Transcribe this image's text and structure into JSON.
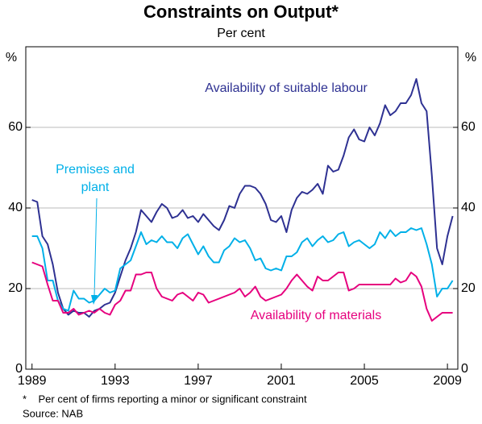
{
  "chart_data": {
    "type": "line",
    "title": "Constraints on Output*",
    "subtitle": "Per cent",
    "y_unit": "%",
    "y2_unit": "%",
    "x": [
      1989,
      1989.25,
      1989.5,
      1989.75,
      1990,
      1990.25,
      1990.5,
      1990.75,
      1991,
      1991.25,
      1991.5,
      1991.75,
      1992,
      1992.25,
      1992.5,
      1992.75,
      1993,
      1993.25,
      1993.5,
      1993.75,
      1994,
      1994.25,
      1994.5,
      1994.75,
      1995,
      1995.25,
      1995.5,
      1995.75,
      1996,
      1996.25,
      1996.5,
      1996.75,
      1997,
      1997.25,
      1997.5,
      1997.75,
      1998,
      1998.25,
      1998.5,
      1998.75,
      1999,
      1999.25,
      1999.5,
      1999.75,
      2000,
      2000.25,
      2000.5,
      2000.75,
      2001,
      2001.25,
      2001.5,
      2001.75,
      2002,
      2002.25,
      2002.5,
      2002.75,
      2003,
      2003.25,
      2003.5,
      2003.75,
      2004,
      2004.25,
      2004.5,
      2004.75,
      2005,
      2005.25,
      2005.5,
      2005.75,
      2006,
      2006.25,
      2006.5,
      2006.75,
      2007,
      2007.25,
      2007.5,
      2007.75,
      2008,
      2008.25,
      2008.5,
      2008.75,
      2009,
      2009.25
    ],
    "series": [
      {
        "name": "Availability of suitable labour",
        "color": "#2e3192",
        "values": [
          42,
          41.5,
          33,
          31,
          26,
          19,
          15,
          13.5,
          14.5,
          14,
          14,
          13,
          14.5,
          15,
          16,
          16.5,
          19,
          23,
          27,
          30,
          34,
          39.5,
          38,
          36.5,
          39,
          41,
          40,
          37.5,
          38,
          39.5,
          37.5,
          38,
          36.5,
          38.5,
          37,
          35.5,
          34.5,
          37,
          40.5,
          40,
          43.5,
          45.5,
          45.5,
          45,
          43.5,
          41,
          37,
          36.5,
          38,
          34,
          39.5,
          42.5,
          44,
          43.5,
          44.5,
          46,
          43.5,
          50.5,
          49,
          49.5,
          53,
          57.5,
          59.5,
          57,
          56.5,
          60,
          58,
          61,
          65.5,
          63,
          64,
          66,
          66,
          68,
          72,
          66,
          64,
          48,
          30,
          26,
          33,
          38
        ]
      },
      {
        "name": "Premises and plant",
        "color": "#00b0e8",
        "values": [
          33,
          33,
          30,
          22,
          22,
          17,
          15,
          14.5,
          19.5,
          17.5,
          17.5,
          16.5,
          17,
          18.5,
          20,
          19,
          19.5,
          25,
          26,
          27,
          30.5,
          34,
          31,
          32,
          31.5,
          33,
          31.5,
          31.5,
          30,
          32.5,
          33.5,
          31,
          28.5,
          30.5,
          28,
          26.5,
          26.5,
          29.5,
          30.5,
          32.5,
          31.5,
          32,
          30,
          27,
          27.5,
          25,
          24.5,
          25,
          24.5,
          28,
          28,
          29,
          31.5,
          32.5,
          30.5,
          32,
          33,
          31.5,
          32,
          33.5,
          34,
          30.5,
          31.5,
          32,
          31,
          30,
          31,
          34,
          32.5,
          34.5,
          33,
          34,
          34,
          35,
          34.5,
          35,
          31,
          26,
          18,
          20,
          20,
          22
        ]
      },
      {
        "name": "Availability of materials",
        "color": "#e6007e",
        "values": [
          26.5,
          26,
          25.5,
          21,
          17,
          17,
          14,
          14,
          15,
          13.5,
          14,
          14.5,
          14,
          15,
          14,
          13.5,
          16,
          17,
          19.5,
          19.5,
          23.5,
          23.5,
          24,
          24,
          20,
          18,
          17.5,
          17,
          18.5,
          19,
          18,
          17,
          19,
          18.5,
          16.5,
          17,
          17.5,
          18,
          18.5,
          19,
          20,
          18,
          19,
          20.5,
          18,
          17,
          17.5,
          18,
          18.5,
          20,
          22,
          23.5,
          22,
          20.5,
          19.5,
          23,
          22,
          22,
          23,
          24,
          24,
          19.5,
          20,
          21,
          21,
          21,
          21,
          21,
          21,
          21,
          22.5,
          21.5,
          22,
          24,
          23,
          20.5,
          15,
          12,
          13,
          14,
          14,
          14
        ]
      }
    ],
    "annotations": [
      "Availability of suitable labour",
      "Premises and",
      "plant",
      "Availability of materials"
    ],
    "xlim": [
      1988.7,
      2009.5
    ],
    "xticks": [
      1989,
      1993,
      1997,
      2001,
      2005,
      2009
    ],
    "ylim": [
      0,
      80
    ],
    "yticks": [
      0,
      20,
      40,
      60
    ],
    "y2lim": [
      0,
      80
    ],
    "y2ticks": [
      0,
      20,
      40,
      60
    ],
    "grid": true,
    "footnote": "*    Per cent of firms reporting a minor or significant constraint",
    "source": "Source: NAB"
  }
}
